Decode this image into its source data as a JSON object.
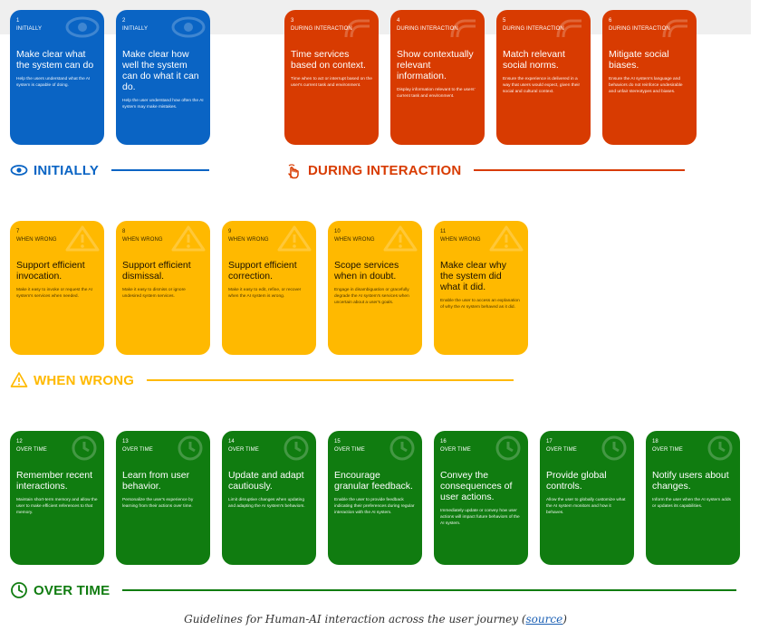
{
  "colors": {
    "initially": "#0a64c4",
    "during": "#d83b01",
    "wrong": "#ffb900",
    "overtime": "#107c10"
  },
  "cards": [
    {
      "num": "1",
      "phase": "INITIALLY",
      "title": "Make clear what the system can do",
      "desc": "Help the users understand what the AI system is capable of doing."
    },
    {
      "num": "2",
      "phase": "INITIALLY",
      "title": "Make clear how well the system can do what it can do.",
      "desc": "Help the user understand how often the AI system may make mistakes."
    },
    {
      "num": "3",
      "phase": "DURING INTERACTION",
      "title": "Time services based on context.",
      "desc": "Time when to act or interrupt based on the user's current task and environment."
    },
    {
      "num": "4",
      "phase": "DURING INTERACTION",
      "title": "Show contextually relevant information.",
      "desc": "Display information relevant to the users' current task and environment."
    },
    {
      "num": "5",
      "phase": "DURING INTERACTION",
      "title": "Match relevant social norms.",
      "desc": "Ensure the experience is delivered in a way that users would expect, given their social and cultural context."
    },
    {
      "num": "6",
      "phase": "DURING INTERACTION",
      "title": "Mitigate social biases.",
      "desc": "Ensure the AI system's language and behaviors do not reinforce undesirable and unfair stereotypes and biases."
    },
    {
      "num": "7",
      "phase": "WHEN WRONG",
      "title": "Support efficient invocation.",
      "desc": "Make it easy to invoke or request the AI system's services when needed."
    },
    {
      "num": "8",
      "phase": "WHEN WRONG",
      "title": "Support efficient dismissal.",
      "desc": "Make it easy to dismiss or ignore undesired system services."
    },
    {
      "num": "9",
      "phase": "WHEN WRONG",
      "title": "Support efficient correction.",
      "desc": "Make it easy to edit, refine, or recover when the AI system is wrong."
    },
    {
      "num": "10",
      "phase": "WHEN WRONG",
      "title": "Scope services when in doubt.",
      "desc": "Engage in disambiguation or gracefully degrade the AI system's services when uncertain about a user's goals."
    },
    {
      "num": "11",
      "phase": "WHEN WRONG",
      "title": "Make clear why the system did what it did.",
      "desc": "Enable the user to access an explanation of why the AI system behaved as it did."
    },
    {
      "num": "12",
      "phase": "OVER TIME",
      "title": "Remember recent interactions.",
      "desc": "Maintain short-term memory and allow the user to make efficient references to that memory."
    },
    {
      "num": "13",
      "phase": "OVER TIME",
      "title": "Learn from user behavior.",
      "desc": "Personalize the user's experience by learning from their actions over time."
    },
    {
      "num": "14",
      "phase": "OVER TIME",
      "title": "Update and adapt cautiously.",
      "desc": "Limit disruptive changes when updating and adapting the AI system's behaviors."
    },
    {
      "num": "15",
      "phase": "OVER TIME",
      "title": "Encourage granular feedback.",
      "desc": "Enable the user to provide feedback indicating their preferences during regular interaction with the AI system."
    },
    {
      "num": "16",
      "phase": "OVER TIME",
      "title": "Convey the consequences of user actions.",
      "desc": "Immediately update or convey how user actions will impact future behaviors of the AI system."
    },
    {
      "num": "17",
      "phase": "OVER TIME",
      "title": "Provide global controls.",
      "desc": "Allow the user to globally customize what the AI system monitors and how it behaves."
    },
    {
      "num": "18",
      "phase": "OVER TIME",
      "title": "Notify users about changes.",
      "desc": "Inform the user when the AI system adds or updates its capabilities."
    }
  ],
  "sections": {
    "initially": "INITIALLY",
    "during": "DURING INTERACTION",
    "wrong": "WHEN WRONG",
    "overtime": "OVER TIME"
  },
  "caption": {
    "text": "Guidelines for Human-AI interaction across the user journey (",
    "link": "source",
    "end": ")"
  }
}
